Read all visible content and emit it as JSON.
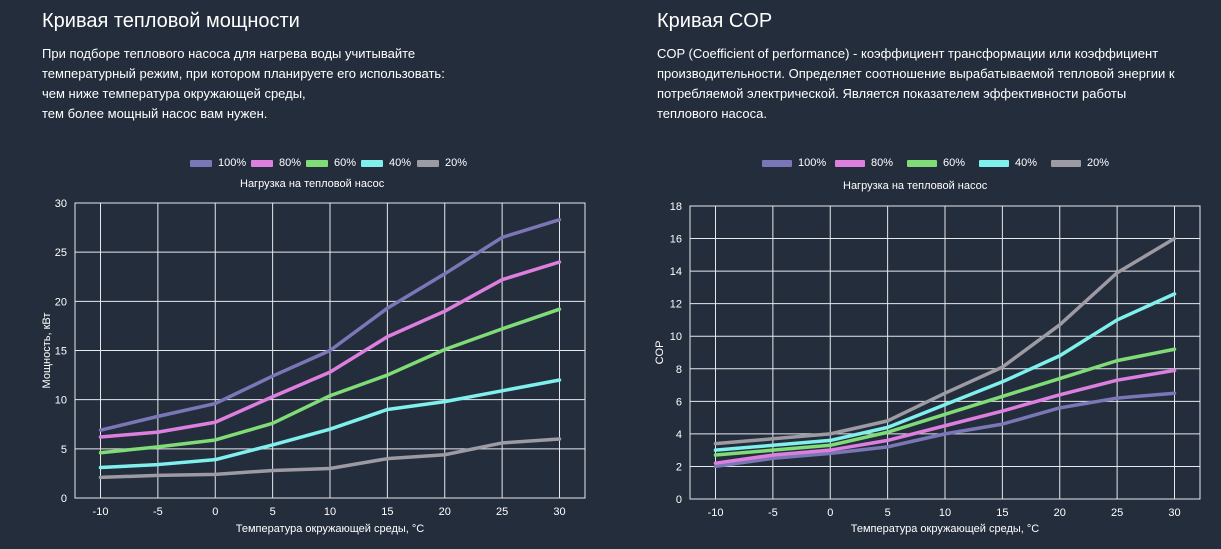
{
  "chart_data": [
    {
      "type": "line",
      "title": "Кривая тепловой мощности",
      "description": [
        "При подборе теплового насоса для нагрева воды учитывайте",
        "температурный режим, при котором планируете его использовать:",
        "чем ниже температура окружающей среды,",
        "тем более мощный насос вам нужен."
      ],
      "legend_title": "Нагрузка на тепловой насос",
      "xlabel": "Температура окружающей среды, °С",
      "ylabel": "Мощность, кВт",
      "x": [
        -10,
        -5,
        0,
        5,
        10,
        15,
        20,
        25,
        30
      ],
      "xticks": [
        "-10",
        "-5",
        "0",
        "5",
        "10",
        "15",
        "20",
        "25",
        "30"
      ],
      "ylim": [
        0,
        30
      ],
      "yticks": [
        0,
        5,
        10,
        15,
        20,
        25,
        30
      ],
      "grid": true,
      "series": [
        {
          "name": "100%",
          "color": "#7b77b6",
          "values": [
            6.9,
            8.3,
            9.6,
            12.4,
            15.0,
            19.3,
            22.8,
            26.5,
            28.3
          ]
        },
        {
          "name": "80%",
          "color": "#dd7fdf",
          "values": [
            6.2,
            6.7,
            7.7,
            10.3,
            12.8,
            16.4,
            19.0,
            22.2,
            24.0
          ]
        },
        {
          "name": "60%",
          "color": "#7fdc76",
          "values": [
            4.6,
            5.2,
            5.9,
            7.6,
            10.4,
            12.5,
            15.1,
            17.2,
            19.2
          ]
        },
        {
          "name": "40%",
          "color": "#7ff0ec",
          "values": [
            3.1,
            3.4,
            3.9,
            5.4,
            7.0,
            9.0,
            9.8,
            10.9,
            12.0
          ]
        },
        {
          "name": "20%",
          "color": "#9c9aa2",
          "values": [
            2.1,
            2.3,
            2.4,
            2.8,
            3.0,
            4.0,
            4.4,
            5.6,
            6.0
          ]
        }
      ]
    },
    {
      "type": "line",
      "title": "Кривая COP",
      "description": [
        "COP (Coefficient of performance) - коэффициент трансформации или коэффициент",
        "производительности. Определяет соотношение вырабатываемой тепловой энергии к",
        "потребляемой электрической. Является показателем эффективности работы",
        "теплового насоса."
      ],
      "legend_title": "Нагрузка на тепловой насос",
      "xlabel": "Температура окружающей среды, °С",
      "ylabel": "COP",
      "x": [
        -10,
        -5,
        0,
        5,
        10,
        15,
        20,
        25,
        30
      ],
      "xticks": [
        "-10",
        "-5",
        "0",
        "5",
        "10",
        "15",
        "20",
        "25",
        "30"
      ],
      "ylim": [
        0,
        18
      ],
      "yticks": [
        0,
        2,
        4,
        6,
        8,
        10,
        12,
        14,
        16,
        18
      ],
      "grid": true,
      "series": [
        {
          "name": "100%",
          "color": "#7b77b6",
          "values": [
            2.0,
            2.5,
            2.8,
            3.2,
            4.0,
            4.6,
            5.6,
            6.2,
            6.5
          ]
        },
        {
          "name": "80%",
          "color": "#dd7fdf",
          "values": [
            2.2,
            2.7,
            3.0,
            3.6,
            4.5,
            5.4,
            6.4,
            7.3,
            7.9
          ]
        },
        {
          "name": "60%",
          "color": "#7fdc76",
          "values": [
            2.7,
            3.0,
            3.3,
            4.1,
            5.2,
            6.3,
            7.4,
            8.5,
            9.2
          ]
        },
        {
          "name": "40%",
          "color": "#7ff0ec",
          "values": [
            3.0,
            3.3,
            3.6,
            4.4,
            5.8,
            7.2,
            8.8,
            11.0,
            12.6
          ]
        },
        {
          "name": "20%",
          "color": "#9c9aa2",
          "values": [
            3.4,
            3.7,
            4.0,
            4.8,
            6.5,
            8.1,
            10.7,
            13.9,
            16.0
          ]
        }
      ]
    }
  ]
}
